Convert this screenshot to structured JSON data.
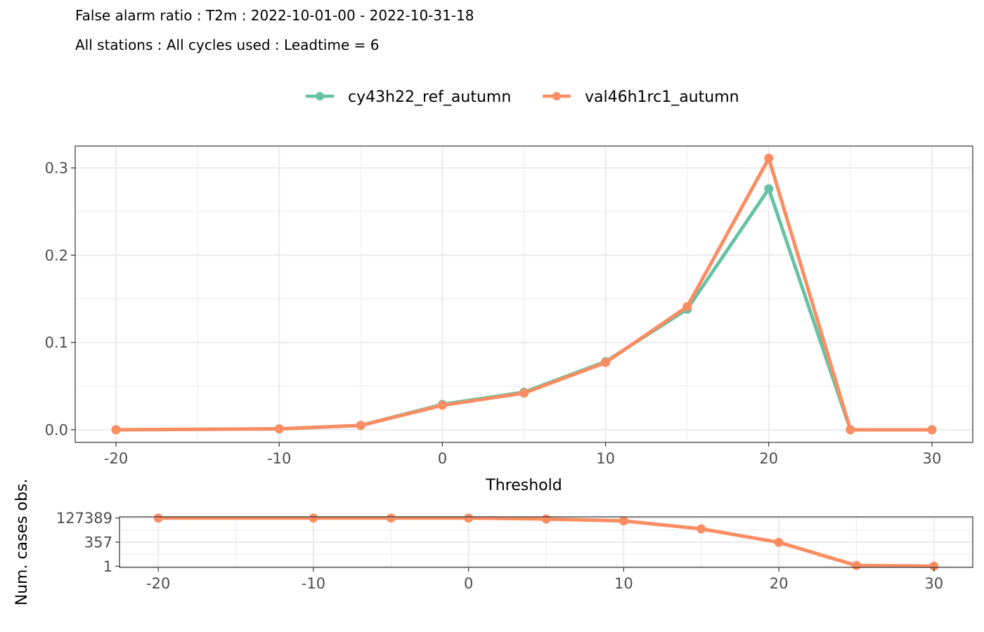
{
  "title": "False alarm ratio : T2m : 2022-10-01-00 - 2022-10-31-18",
  "subtitle": "All stations : All cycles used : Leadtime = 6",
  "colors": {
    "series1": "#66c2a5",
    "series2": "#fc8d62"
  },
  "chart_data": [
    {
      "type": "line",
      "xlabel": "Threshold",
      "ylabel": "",
      "xlim": [
        -22.5,
        32.5
      ],
      "ylim": [
        -0.0145,
        0.325
      ],
      "xticks": [
        -20,
        -10,
        0,
        10,
        20,
        30
      ],
      "yticks": [
        0.0,
        0.1,
        0.2,
        0.3
      ],
      "ytick_labels": [
        "0.0",
        "0.1",
        "0.2",
        "0.3"
      ],
      "grid": true,
      "legend": "top",
      "x": [
        -20,
        -10,
        -5,
        0,
        5,
        10,
        15,
        20,
        25,
        30
      ],
      "series": [
        {
          "name": "cy43h22_ref_autumn",
          "values": [
            0.0,
            0.001,
            0.005,
            0.029,
            0.043,
            0.078,
            0.138,
            0.276,
            0.0,
            0.0
          ]
        },
        {
          "name": "val46h1rc1_autumn",
          "values": [
            0.0,
            0.001,
            0.005,
            0.028,
            0.042,
            0.077,
            0.141,
            0.311,
            0.0,
            0.0
          ]
        }
      ]
    },
    {
      "type": "line",
      "xlabel": "",
      "ylabel": "Num. cases obs.",
      "xlim": [
        -22.5,
        32.5
      ],
      "ylim": [
        -0.05,
        2.05
      ],
      "scale": "log",
      "xticks": [
        -20,
        -10,
        0,
        10,
        20,
        30
      ],
      "yticks": [
        0,
        1,
        2
      ],
      "ytick_labels": [
        "1",
        "357",
        "127389"
      ],
      "grid": true,
      "x": [
        -20,
        -10,
        -5,
        0,
        5,
        10,
        15,
        20,
        25,
        30
      ],
      "series": [
        {
          "values": [
            2.0,
            2.0,
            2.0,
            2.0,
            1.96,
            1.88,
            1.55,
            0.99,
            0.03,
            0.0
          ]
        }
      ]
    }
  ]
}
